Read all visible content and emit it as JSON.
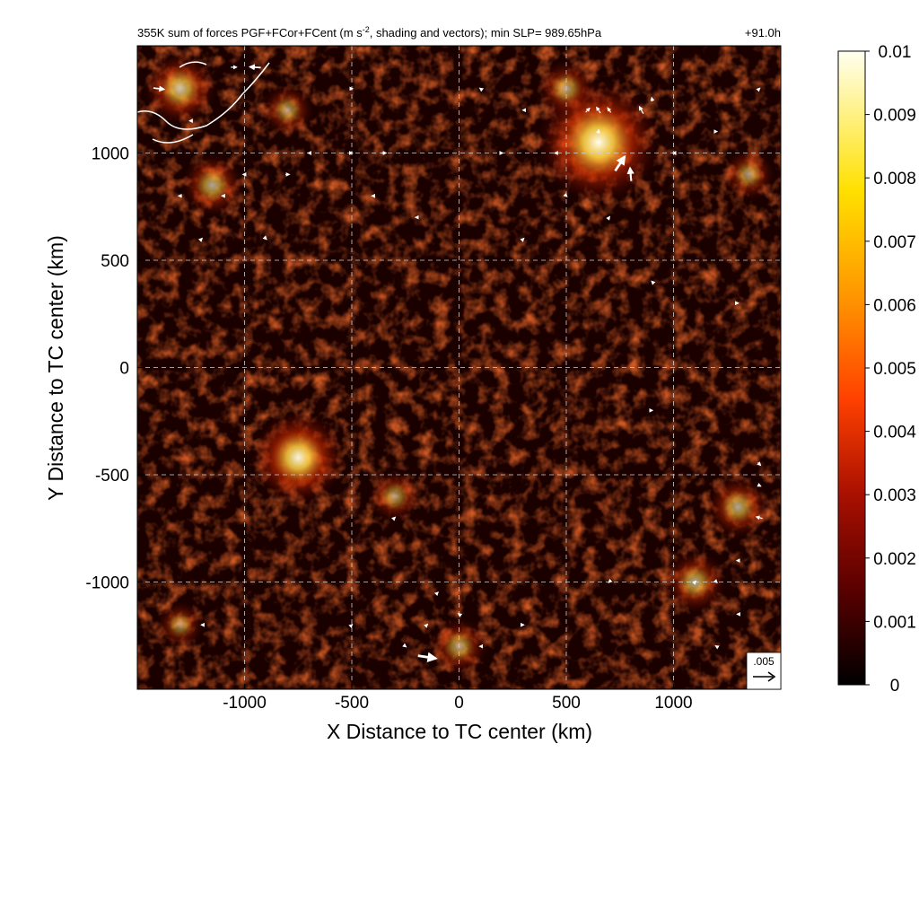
{
  "chart_data": {
    "type": "heatmap",
    "title": {
      "left_pre": "355K sum of forces PGF+FCor+FCent (m s",
      "left_sup": "-2",
      "left_post": ", shading and vectors); min SLP= 989.65hPa",
      "right": "+91.0h"
    },
    "xlabel": "X Distance to TC center (km)",
    "ylabel": "Y Distance to TC center (km)",
    "xlim": [
      -1500,
      1500
    ],
    "ylim": [
      -1500,
      1500
    ],
    "x_ticks": [
      -1000,
      -500,
      0,
      500,
      1000
    ],
    "y_ticks": [
      1000,
      500,
      0,
      -500,
      -1000
    ],
    "x_tick_labels": [
      "-1000",
      "-500",
      "0",
      "500",
      "1000"
    ],
    "y_tick_labels": [
      "1000",
      "500",
      "0",
      "-500",
      "-1000"
    ],
    "grid": true,
    "colorbar": {
      "min": 0,
      "max": 0.01,
      "tick_values": [
        0.01,
        0.009,
        0.008,
        0.007,
        0.006,
        0.005,
        0.004,
        0.003,
        0.002,
        0.001,
        0
      ],
      "tick_labels": [
        "0.01",
        "0.009",
        "0.008",
        "0.007",
        "0.006",
        "0.005",
        "0.004",
        "0.003",
        "0.002",
        "0.001",
        "0"
      ],
      "colors": [
        "#000000",
        "#5a0000",
        "#a81000",
        "#ff4000",
        "#ff9000",
        "#ffe000",
        "#fffff0"
      ]
    },
    "reference_vector": {
      "label": ".005",
      "value": 0.005
    },
    "hotspots": [
      {
        "x": 650,
        "y": 1050,
        "intensity": 0.009
      },
      {
        "x": -1300,
        "y": 1300,
        "intensity": 0.004
      },
      {
        "x": -1150,
        "y": 850,
        "intensity": 0.003
      },
      {
        "x": 1300,
        "y": -650,
        "intensity": 0.003
      },
      {
        "x": 1100,
        "y": -1000,
        "intensity": 0.003
      },
      {
        "x": 0,
        "y": -1300,
        "intensity": 0.0025
      },
      {
        "x": -800,
        "y": 1200,
        "intensity": 0.002
      },
      {
        "x": -750,
        "y": -420,
        "intensity": 0.006
      },
      {
        "x": -300,
        "y": -600,
        "intensity": 0.002
      },
      {
        "x": 500,
        "y": 1300,
        "intensity": 0.0025
      },
      {
        "x": 1350,
        "y": 900,
        "intensity": 0.002
      },
      {
        "x": -1300,
        "y": -1200,
        "intensity": 0.0015
      }
    ],
    "vectors": [
      {
        "x": -1400,
        "y": 1300,
        "u": 0.0027,
        "v": -0.0003
      },
      {
        "x": -950,
        "y": 1400,
        "u": -0.0028,
        "v": 0.0002
      },
      {
        "x": -1050,
        "y": 1400,
        "u": 0.0015,
        "v": 0.0
      },
      {
        "x": 650,
        "y": 1200,
        "u": -0.001,
        "v": 0.0015
      },
      {
        "x": 700,
        "y": 1200,
        "u": -0.0008,
        "v": 0.0012
      },
      {
        "x": 750,
        "y": 950,
        "u": 0.0024,
        "v": 0.0036
      },
      {
        "x": 800,
        "y": 900,
        "u": -0.0003,
        "v": 0.0033
      },
      {
        "x": 850,
        "y": 1200,
        "u": -0.001,
        "v": 0.0018
      },
      {
        "x": 900,
        "y": 1250,
        "u": -0.0002,
        "v": 0.001
      },
      {
        "x": 600,
        "y": 1200,
        "u": 0.001,
        "v": 0.001
      },
      {
        "x": 650,
        "y": 1100,
        "u": 0.0002,
        "v": 0.001
      },
      {
        "x": -350,
        "y": 1000,
        "u": 0.0012,
        "v": 0.0
      },
      {
        "x": -400,
        "y": 800,
        "u": -0.0008,
        "v": 0.0
      },
      {
        "x": -800,
        "y": 900,
        "u": 0.001,
        "v": 0.0
      },
      {
        "x": -1000,
        "y": 900,
        "u": -0.0009,
        "v": 0.0
      },
      {
        "x": -1300,
        "y": 800,
        "u": -0.0009,
        "v": 0.0
      },
      {
        "x": -1100,
        "y": 800,
        "u": -0.0007,
        "v": 0.0
      },
      {
        "x": -1250,
        "y": 1150,
        "u": -0.0008,
        "v": 0.0
      },
      {
        "x": 1400,
        "y": -700,
        "u": -0.0016,
        "v": 0.0004
      },
      {
        "x": 1400,
        "y": -450,
        "u": 0.0007,
        "v": -0.0007
      },
      {
        "x": 1400,
        "y": -550,
        "u": 0.0008,
        "v": -0.0004
      },
      {
        "x": 1100,
        "y": -1000,
        "u": 0.0005,
        "v": 0.0005
      },
      {
        "x": 1200,
        "y": -1000,
        "u": 0.0004,
        "v": -0.0004
      },
      {
        "x": 1300,
        "y": -900,
        "u": -0.0006,
        "v": 0.0
      },
      {
        "x": 1300,
        "y": -1150,
        "u": -0.0005,
        "v": 0.0
      },
      {
        "x": 1200,
        "y": -1300,
        "u": -0.0005,
        "v": 0.0003
      },
      {
        "x": -150,
        "y": -1350,
        "u": 0.0045,
        "v": -0.0007
      },
      {
        "x": 100,
        "y": -1300,
        "u": -0.0005,
        "v": 0.0
      },
      {
        "x": -150,
        "y": -1200,
        "u": 0.0004,
        "v": 0.0004
      },
      {
        "x": -250,
        "y": -1300,
        "u": 0.0004,
        "v": -0.0003
      },
      {
        "x": 0,
        "y": -1150,
        "u": -0.0004,
        "v": 0.0003
      },
      {
        "x": -100,
        "y": -1050,
        "u": 0.0003,
        "v": 0.0003
      },
      {
        "x": -500,
        "y": 1300,
        "u": 0.0005,
        "v": 0.0
      },
      {
        "x": 100,
        "y": 1300,
        "u": -0.0004,
        "v": 0.0003
      },
      {
        "x": 300,
        "y": 1200,
        "u": -0.0004,
        "v": 0.0
      },
      {
        "x": 200,
        "y": 1000,
        "u": 0.0004,
        "v": 0.0
      },
      {
        "x": 450,
        "y": 1000,
        "u": -0.0005,
        "v": 0.0
      },
      {
        "x": 500,
        "y": 800,
        "u": 0.0004,
        "v": -0.0004
      },
      {
        "x": 700,
        "y": 700,
        "u": 0.0003,
        "v": 0.0004
      },
      {
        "x": 1000,
        "y": 1000,
        "u": -0.0004,
        "v": 0.0
      },
      {
        "x": 1200,
        "y": 1100,
        "u": 0.0004,
        "v": 0.0
      },
      {
        "x": 1400,
        "y": 1300,
        "u": 0.0003,
        "v": 0.0003
      },
      {
        "x": -700,
        "y": 1000,
        "u": -0.0004,
        "v": 0.0
      },
      {
        "x": -500,
        "y": 1000,
        "u": 0.0004,
        "v": 0.0
      },
      {
        "x": -1200,
        "y": 600,
        "u": 0.0003,
        "v": 0.0003
      },
      {
        "x": -900,
        "y": 600,
        "u": 0.0003,
        "v": -0.0003
      },
      {
        "x": -200,
        "y": 700,
        "u": -0.0004,
        "v": 0.0
      },
      {
        "x": 300,
        "y": 600,
        "u": 0.0003,
        "v": 0.0003
      },
      {
        "x": 900,
        "y": 400,
        "u": -0.0003,
        "v": 0.0003
      },
      {
        "x": 1300,
        "y": 300,
        "u": 0.0003,
        "v": 0.0
      },
      {
        "x": -1200,
        "y": -1200,
        "u": -0.0003,
        "v": 0.0
      },
      {
        "x": -500,
        "y": -1200,
        "u": 0.0003,
        "v": 0.0003
      },
      {
        "x": 300,
        "y": -1200,
        "u": 0.0003,
        "v": 0.0
      },
      {
        "x": 700,
        "y": -1000,
        "u": -0.0003,
        "v": -0.0003
      },
      {
        "x": 900,
        "y": -200,
        "u": 0.0003,
        "v": 0.0
      },
      {
        "x": -300,
        "y": -700,
        "u": 0.0003,
        "v": 0.0003
      }
    ]
  }
}
